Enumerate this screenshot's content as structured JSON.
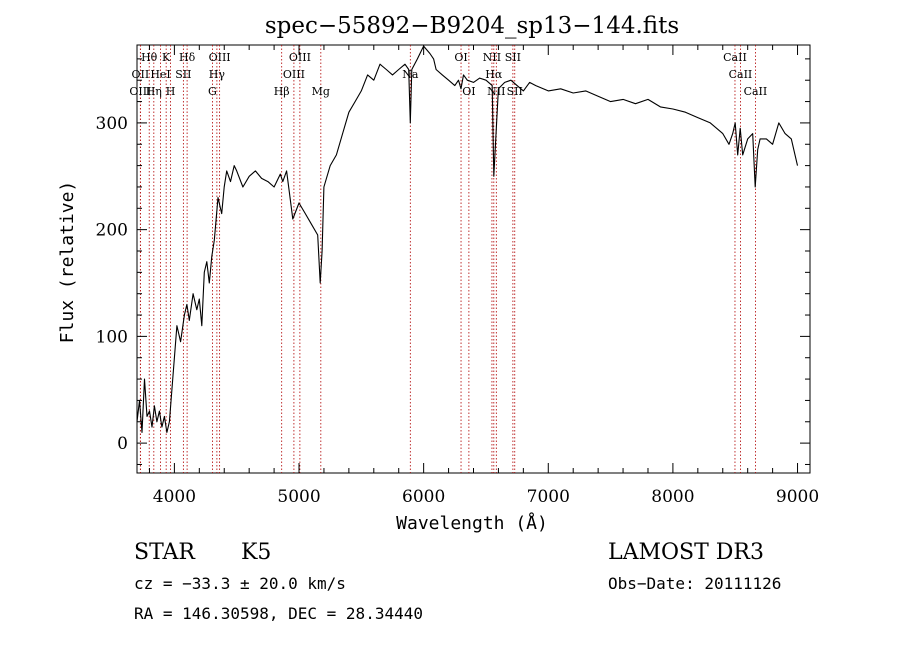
{
  "chart_data": {
    "type": "line",
    "title": "spec−55892−B9204_sp13−144.fits",
    "xlabel": "Wavelength (Å)",
    "ylabel": "Flux (relative)",
    "xlim": [
      3700,
      9100
    ],
    "ylim": [
      -28,
      373
    ],
    "grid": false,
    "x_ticks": [
      4000,
      5000,
      6000,
      7000,
      8000,
      9000
    ],
    "y_ticks": [
      0,
      100,
      200,
      300
    ],
    "lines": [
      {
        "name": "Hθ",
        "x": 3798,
        "row": 0
      },
      {
        "name": "OII",
        "x": 3727,
        "row": 1
      },
      {
        "name": "OIII",
        "x": 3727,
        "row": 2
      },
      {
        "name": "Hη",
        "x": 3835,
        "row": 2
      },
      {
        "name": "HeI",
        "x": 3889,
        "row": 1
      },
      {
        "name": "K",
        "x": 3934,
        "row": 0
      },
      {
        "name": "H",
        "x": 3969,
        "row": 2
      },
      {
        "name": "SII",
        "x": 4072,
        "row": 1
      },
      {
        "name": "Hδ",
        "x": 4102,
        "row": 0
      },
      {
        "name": "OIII",
        "x": 4363,
        "row": 0
      },
      {
        "name": "Hγ",
        "x": 4341,
        "row": 1
      },
      {
        "name": "G",
        "x": 4305,
        "row": 2
      },
      {
        "name": "Hβ",
        "x": 4861,
        "row": 2
      },
      {
        "name": "OIII",
        "x": 5007,
        "row": 0
      },
      {
        "name": "OIII",
        "x": 4959,
        "row": 1
      },
      {
        "name": "Mg",
        "x": 5175,
        "row": 2
      },
      {
        "name": "Na",
        "x": 5893,
        "row": 1
      },
      {
        "name": "OI",
        "x": 6300,
        "row": 0
      },
      {
        "name": "OI",
        "x": 6363,
        "row": 2
      },
      {
        "name": "NII",
        "x": 6548,
        "row": 0
      },
      {
        "name": "Hα",
        "x": 6563,
        "row": 1
      },
      {
        "name": "NII",
        "x": 6583,
        "row": 2
      },
      {
        "name": "SII",
        "x": 6716,
        "row": 0
      },
      {
        "name": "SII",
        "x": 6731,
        "row": 2
      },
      {
        "name": "CaII",
        "x": 8498,
        "row": 0
      },
      {
        "name": "CaII",
        "x": 8542,
        "row": 1
      },
      {
        "name": "CaII",
        "x": 8662,
        "row": 2
      }
    ],
    "series": [
      {
        "x": [
          3700,
          3720,
          3740,
          3760,
          3780,
          3800,
          3820,
          3840,
          3860,
          3880,
          3900,
          3920,
          3940,
          3960,
          3980,
          4000,
          4020,
          4050,
          4080,
          4100,
          4120,
          4150,
          4180,
          4200,
          4220,
          4240,
          4260,
          4280,
          4300,
          4320,
          4350,
          4380,
          4400,
          4420,
          4450,
          4480,
          4500,
          4550,
          4600,
          4650,
          4700,
          4750,
          4800,
          4850,
          4870,
          4900,
          4950,
          5000,
          5050,
          5100,
          5150,
          5170,
          5185,
          5200,
          5250,
          5300,
          5350,
          5400,
          5450,
          5500,
          5550,
          5600,
          5650,
          5700,
          5750,
          5800,
          5850,
          5880,
          5893,
          5905,
          5950,
          6000,
          6050,
          6080,
          6100,
          6150,
          6200,
          6250,
          6280,
          6300,
          6320,
          6350,
          6400,
          6450,
          6500,
          6550,
          6563,
          6600,
          6650,
          6700,
          6750,
          6800,
          6850,
          6900,
          7000,
          7100,
          7200,
          7300,
          7400,
          7500,
          7600,
          7700,
          7800,
          7900,
          8000,
          8100,
          8200,
          8300,
          8400,
          8450,
          8480,
          8500,
          8520,
          8540,
          8560,
          8600,
          8640,
          8660,
          8680,
          8700,
          8750,
          8800,
          8850,
          8900,
          8950,
          8980,
          9000
        ],
        "y": [
          20,
          40,
          10,
          60,
          25,
          30,
          15,
          35,
          20,
          30,
          15,
          25,
          10,
          20,
          50,
          80,
          110,
          95,
          120,
          130,
          115,
          140,
          125,
          135,
          110,
          160,
          170,
          150,
          175,
          190,
          230,
          215,
          240,
          255,
          245,
          260,
          255,
          240,
          250,
          255,
          248,
          245,
          240,
          252,
          245,
          255,
          210,
          225,
          215,
          205,
          195,
          150,
          180,
          240,
          260,
          270,
          290,
          310,
          320,
          330,
          345,
          340,
          355,
          350,
          345,
          350,
          355,
          350,
          300,
          350,
          360,
          372,
          365,
          360,
          350,
          345,
          340,
          335,
          340,
          332,
          345,
          340,
          338,
          342,
          340,
          335,
          250,
          332,
          338,
          340,
          335,
          330,
          338,
          335,
          330,
          332,
          328,
          330,
          325,
          320,
          322,
          318,
          322,
          315,
          313,
          310,
          305,
          300,
          290,
          280,
          290,
          300,
          270,
          295,
          270,
          285,
          290,
          240,
          275,
          285,
          285,
          280,
          300,
          290,
          285,
          270,
          260
        ]
      }
    ]
  },
  "info": {
    "class": "STAR",
    "subclass": "K5",
    "survey": "LAMOST DR3",
    "cz": "cz = −33.3 ± 20.0 km/s",
    "obs_date": "Obs−Date: 20111126",
    "coords": "RA = 146.30598, DEC =  28.34440"
  }
}
